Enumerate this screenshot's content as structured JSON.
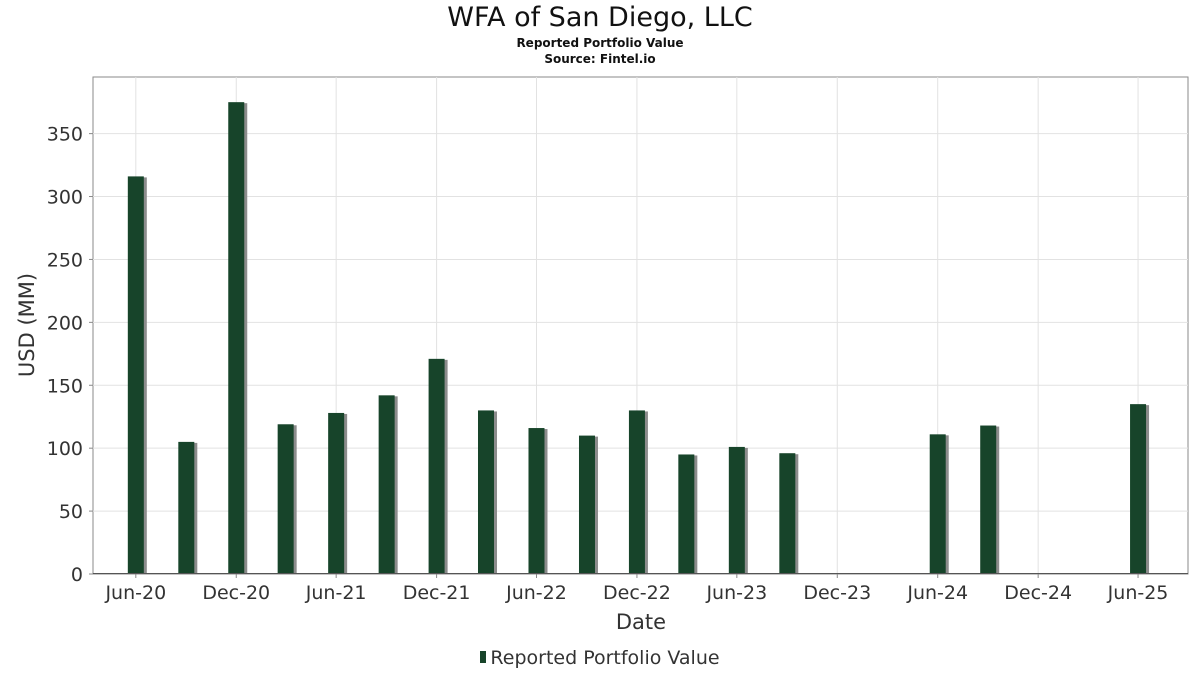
{
  "chart_data": {
    "type": "bar",
    "title": "WFA of San Diego, LLC",
    "subtitle": "Reported Portfolio Value",
    "source": "Source: Fintel.io",
    "xlabel": "Date",
    "ylabel": "USD (MM)",
    "ylim": [
      0,
      395
    ],
    "yticks": [
      0,
      50,
      100,
      150,
      200,
      250,
      300,
      350
    ],
    "x_tick_labels": [
      "Jun-20",
      "Dec-20",
      "Jun-21",
      "Dec-21",
      "Jun-22",
      "Dec-22",
      "Jun-23",
      "Dec-23",
      "Jun-24",
      "Dec-24",
      "Jun-25"
    ],
    "x_tick_dates": [
      "2020-06-01",
      "2020-12-01",
      "2021-06-01",
      "2021-12-01",
      "2022-06-01",
      "2022-12-01",
      "2023-06-01",
      "2023-12-01",
      "2024-06-01",
      "2024-12-01",
      "2025-06-01"
    ],
    "xlim": [
      "2020-03-15",
      "2025-08-31"
    ],
    "series": [
      {
        "name": "Reported Portfolio Value",
        "color": "#17442a",
        "points": [
          {
            "x": "2020-06-01",
            "y": 316
          },
          {
            "x": "2020-09-01",
            "y": 105
          },
          {
            "x": "2020-12-01",
            "y": 375
          },
          {
            "x": "2021-03-01",
            "y": 119
          },
          {
            "x": "2021-06-01",
            "y": 128
          },
          {
            "x": "2021-09-01",
            "y": 142
          },
          {
            "x": "2021-12-01",
            "y": 171
          },
          {
            "x": "2022-03-01",
            "y": 130
          },
          {
            "x": "2022-06-01",
            "y": 116
          },
          {
            "x": "2022-09-01",
            "y": 110
          },
          {
            "x": "2022-12-01",
            "y": 130
          },
          {
            "x": "2023-03-01",
            "y": 95
          },
          {
            "x": "2023-06-01",
            "y": 101
          },
          {
            "x": "2023-09-01",
            "y": 96
          },
          {
            "x": "2024-06-01",
            "y": 111
          },
          {
            "x": "2024-09-01",
            "y": 118
          },
          {
            "x": "2025-06-01",
            "y": 135
          }
        ]
      }
    ],
    "grid": true,
    "legend_position": "bottom"
  }
}
